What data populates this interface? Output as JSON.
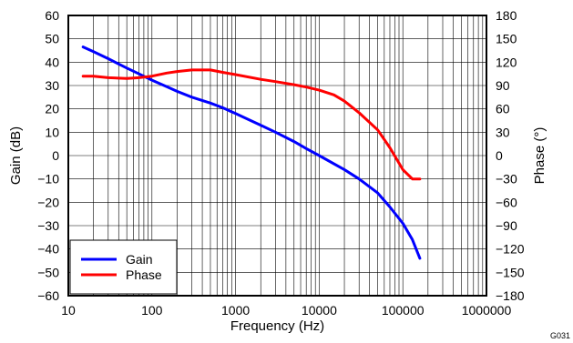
{
  "figure_id": "G031",
  "chart_data": {
    "type": "line",
    "title": "",
    "xlabel": "Frequency (Hz)",
    "ylabel": "Gain (dB)",
    "y2label": "Phase (°)",
    "xscale": "log",
    "xlim": [
      10,
      1000000
    ],
    "ylim": [
      -60,
      60
    ],
    "y2lim": [
      -180,
      180
    ],
    "grid": true,
    "legend_position": "bottom-left",
    "x_ticks": [
      "10",
      "100",
      "1000",
      "10000",
      "100000",
      "1000000"
    ],
    "y_ticks": [
      "60",
      "50",
      "40",
      "30",
      "20",
      "10",
      "0",
      "−10",
      "−20",
      "−30",
      "−40",
      "−50",
      "−60"
    ],
    "y2_ticks": [
      "180",
      "150",
      "120",
      "90",
      "60",
      "30",
      "0",
      "−30",
      "−60",
      "−90",
      "−120",
      "−150",
      "−180"
    ],
    "series": [
      {
        "name": "Gain",
        "axis": "left",
        "color": "#0000ff",
        "x": [
          15,
          20,
          30,
          50,
          70,
          100,
          150,
          200,
          300,
          500,
          700,
          1000,
          2000,
          3000,
          5000,
          7000,
          10000,
          20000,
          30000,
          50000,
          70000,
          100000,
          130000,
          160000
        ],
        "y": [
          46.5,
          44.5,
          41.5,
          37.5,
          35,
          32.3,
          29.5,
          27.5,
          25,
          22.5,
          20.5,
          18,
          13,
          10,
          6,
          3,
          0,
          -6,
          -10,
          -16,
          -22,
          -29,
          -36,
          -44
        ]
      },
      {
        "name": "Phase",
        "axis": "right",
        "color": "#ff0000",
        "x": [
          15,
          20,
          30,
          50,
          70,
          100,
          150,
          200,
          300,
          500,
          700,
          1000,
          2000,
          3000,
          5000,
          7000,
          10000,
          15000,
          20000,
          30000,
          50000,
          70000,
          100000,
          130000,
          160000
        ],
        "y": [
          102,
          102,
          100,
          99,
          100,
          102,
          106,
          108,
          110,
          110,
          107,
          104,
          98,
          95,
          91,
          88,
          84,
          78,
          70,
          55,
          33,
          10,
          -18,
          -30,
          -30
        ]
      }
    ]
  }
}
